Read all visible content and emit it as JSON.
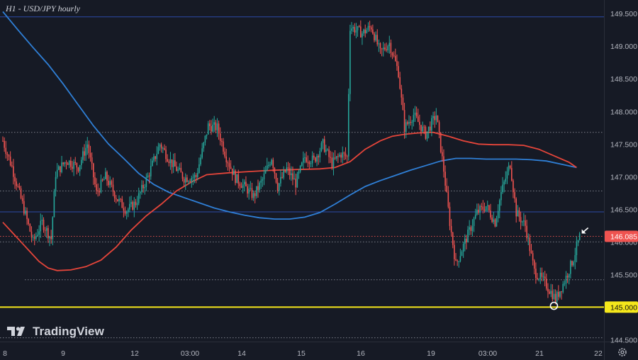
{
  "title": "H1 - USD/JPY hourly",
  "brand": "TradingView",
  "colors": {
    "background": "#161a25",
    "bull": "#26a69a",
    "bear": "#ef5350",
    "ma_red": "#e5453a",
    "ma_blue": "#2f7fd6",
    "support": "#f5e71b",
    "hline": "#2c4aa8",
    "axis_text": "#b2b5be"
  },
  "chart_data": {
    "type": "candlestick",
    "title": "H1 - USD/JPY hourly",
    "ylim": [
      144.45,
      149.6
    ],
    "y_ticks": [
      "149.500",
      "149.000",
      "148.500",
      "148.000",
      "147.500",
      "147.000",
      "146.500",
      "146.000",
      "145.500",
      "145.000",
      "144.500"
    ],
    "x_ticks": [
      "8",
      "9",
      "12",
      "03:00",
      "14",
      "15",
      "16",
      "19",
      "03:00",
      "21",
      "22"
    ],
    "price_labels": [
      {
        "value": 146.085,
        "text": "146.085"
      },
      {
        "value": 145.0,
        "text": "145.000"
      }
    ],
    "support_level": 145.0,
    "horizontal_lines_solid": [
      149.45,
      146.46
    ],
    "horizontal_lines_dotted": [
      147.68,
      146.78,
      146.0,
      145.42,
      144.53
    ],
    "current_price_line": 146.085,
    "moving_average_red": [
      [
        0,
        146.3
      ],
      [
        6,
        146.15
      ],
      [
        12,
        146.0
      ],
      [
        18,
        145.85
      ],
      [
        24,
        145.7
      ],
      [
        30,
        145.6
      ],
      [
        36,
        145.56
      ],
      [
        45,
        145.57
      ],
      [
        55,
        145.62
      ],
      [
        65,
        145.72
      ],
      [
        75,
        145.92
      ],
      [
        85,
        146.18
      ],
      [
        95,
        146.4
      ],
      [
        105,
        146.58
      ],
      [
        115,
        146.78
      ],
      [
        125,
        146.92
      ],
      [
        135,
        147.03
      ],
      [
        150,
        147.06
      ],
      [
        165,
        147.08
      ],
      [
        180,
        147.1
      ],
      [
        195,
        147.11
      ],
      [
        210,
        147.12
      ],
      [
        220,
        147.14
      ],
      [
        230,
        147.23
      ],
      [
        240,
        147.42
      ],
      [
        250,
        147.55
      ],
      [
        258,
        147.62
      ],
      [
        266,
        147.65
      ],
      [
        275,
        147.67
      ],
      [
        285,
        147.68
      ],
      [
        295,
        147.62
      ],
      [
        305,
        147.55
      ],
      [
        315,
        147.5
      ],
      [
        325,
        147.49
      ],
      [
        335,
        147.49
      ],
      [
        345,
        147.48
      ],
      [
        355,
        147.42
      ],
      [
        365,
        147.32
      ],
      [
        375,
        147.22
      ],
      [
        380,
        147.14
      ]
    ],
    "moving_average_blue": [
      [
        0,
        149.53
      ],
      [
        10,
        149.25
      ],
      [
        20,
        148.98
      ],
      [
        30,
        148.72
      ],
      [
        40,
        148.42
      ],
      [
        50,
        148.1
      ],
      [
        60,
        147.78
      ],
      [
        70,
        147.5
      ],
      [
        80,
        147.28
      ],
      [
        90,
        147.05
      ],
      [
        100,
        146.88
      ],
      [
        110,
        146.76
      ],
      [
        120,
        146.68
      ],
      [
        130,
        146.6
      ],
      [
        140,
        146.52
      ],
      [
        150,
        146.46
      ],
      [
        160,
        146.41
      ],
      [
        170,
        146.37
      ],
      [
        180,
        146.35
      ],
      [
        190,
        146.35
      ],
      [
        200,
        146.38
      ],
      [
        210,
        146.45
      ],
      [
        220,
        146.58
      ],
      [
        230,
        146.72
      ],
      [
        240,
        146.85
      ],
      [
        250,
        146.94
      ],
      [
        260,
        147.02
      ],
      [
        270,
        147.1
      ],
      [
        280,
        147.17
      ],
      [
        290,
        147.24
      ],
      [
        300,
        147.28
      ],
      [
        310,
        147.28
      ],
      [
        320,
        147.27
      ],
      [
        330,
        147.27
      ],
      [
        340,
        147.27
      ],
      [
        350,
        147.26
      ],
      [
        360,
        147.24
      ],
      [
        370,
        147.19
      ],
      [
        380,
        147.14
      ]
    ],
    "price_path_keypoints": [
      [
        0,
        147.55
      ],
      [
        6,
        147.15
      ],
      [
        14,
        146.5
      ],
      [
        20,
        146.0
      ],
      [
        26,
        146.3
      ],
      [
        32,
        146.05
      ],
      [
        35,
        147.05
      ],
      [
        42,
        147.25
      ],
      [
        50,
        147.15
      ],
      [
        56,
        147.5
      ],
      [
        62,
        146.75
      ],
      [
        68,
        147.0
      ],
      [
        76,
        146.65
      ],
      [
        82,
        146.48
      ],
      [
        88,
        146.6
      ],
      [
        96,
        147.0
      ],
      [
        104,
        147.5
      ],
      [
        112,
        147.2
      ],
      [
        120,
        146.98
      ],
      [
        128,
        147.0
      ],
      [
        136,
        147.78
      ],
      [
        142,
        147.75
      ],
      [
        148,
        147.3
      ],
      [
        154,
        146.98
      ],
      [
        160,
        146.85
      ],
      [
        166,
        146.7
      ],
      [
        172,
        146.95
      ],
      [
        178,
        147.3
      ],
      [
        182,
        146.85
      ],
      [
        188,
        147.12
      ],
      [
        194,
        146.9
      ],
      [
        200,
        147.3
      ],
      [
        206,
        147.25
      ],
      [
        212,
        147.5
      ],
      [
        218,
        147.2
      ],
      [
        224,
        147.35
      ],
      [
        228,
        147.3
      ],
      [
        230,
        149.3
      ],
      [
        238,
        149.2
      ],
      [
        244,
        149.3
      ],
      [
        250,
        148.9
      ],
      [
        256,
        149.05
      ],
      [
        262,
        148.6
      ],
      [
        266,
        147.75
      ],
      [
        272,
        147.95
      ],
      [
        280,
        147.65
      ],
      [
        287,
        147.95
      ],
      [
        292,
        147.1
      ],
      [
        296,
        146.3
      ],
      [
        300,
        145.65
      ],
      [
        306,
        146.0
      ],
      [
        314,
        146.45
      ],
      [
        320,
        146.55
      ],
      [
        326,
        146.3
      ],
      [
        330,
        146.75
      ],
      [
        336,
        147.2
      ],
      [
        340,
        146.45
      ],
      [
        346,
        146.25
      ],
      [
        352,
        145.55
      ],
      [
        358,
        145.4
      ],
      [
        364,
        145.2
      ],
      [
        366,
        145.12
      ],
      [
        372,
        145.4
      ],
      [
        378,
        145.75
      ],
      [
        382,
        146.08
      ]
    ],
    "annotations": [
      {
        "type": "circle",
        "value": 145.02,
        "note": "low touching 145.000 support"
      },
      {
        "type": "arrow",
        "value": 146.15,
        "note": "current price"
      }
    ]
  }
}
